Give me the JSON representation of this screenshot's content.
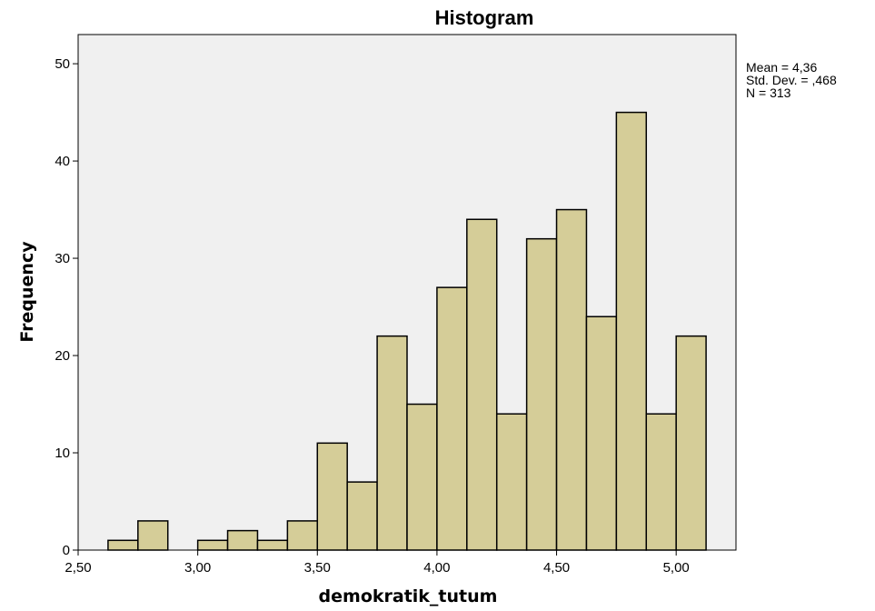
{
  "chart_data": {
    "type": "bar",
    "title": "Histogram",
    "xlabel": "demokratik_tutum",
    "ylabel": "Frequency",
    "xlim": [
      2.5,
      5.25
    ],
    "ylim": [
      0,
      53
    ],
    "xticks": [
      {
        "value": 2.5,
        "label": "2,50"
      },
      {
        "value": 3.0,
        "label": "3,00"
      },
      {
        "value": 3.5,
        "label": "3,50"
      },
      {
        "value": 4.0,
        "label": "4,00"
      },
      {
        "value": 4.5,
        "label": "4,50"
      },
      {
        "value": 5.0,
        "label": "5,00"
      }
    ],
    "yticks": [
      {
        "value": 0,
        "label": "0"
      },
      {
        "value": 10,
        "label": "10"
      },
      {
        "value": 20,
        "label": "20"
      },
      {
        "value": 30,
        "label": "30"
      },
      {
        "value": 40,
        "label": "40"
      },
      {
        "value": 50,
        "label": "50"
      }
    ],
    "bins": [
      {
        "start": 2.625,
        "end": 2.75,
        "count": 1
      },
      {
        "start": 2.75,
        "end": 2.875,
        "count": 3
      },
      {
        "start": 2.875,
        "end": 3.0,
        "count": 0
      },
      {
        "start": 3.0,
        "end": 3.125,
        "count": 1
      },
      {
        "start": 3.125,
        "end": 3.25,
        "count": 2
      },
      {
        "start": 3.25,
        "end": 3.375,
        "count": 1
      },
      {
        "start": 3.375,
        "end": 3.5,
        "count": 3
      },
      {
        "start": 3.5,
        "end": 3.625,
        "count": 11
      },
      {
        "start": 3.625,
        "end": 3.75,
        "count": 7
      },
      {
        "start": 3.75,
        "end": 3.875,
        "count": 22
      },
      {
        "start": 3.875,
        "end": 4.0,
        "count": 15
      },
      {
        "start": 4.0,
        "end": 4.125,
        "count": 27
      },
      {
        "start": 4.125,
        "end": 4.25,
        "count": 34
      },
      {
        "start": 4.25,
        "end": 4.375,
        "count": 14
      },
      {
        "start": 4.375,
        "end": 4.5,
        "count": 32
      },
      {
        "start": 4.5,
        "end": 4.625,
        "count": 35
      },
      {
        "start": 4.625,
        "end": 4.75,
        "count": 24
      },
      {
        "start": 4.75,
        "end": 4.875,
        "count": 45
      },
      {
        "start": 4.875,
        "end": 5.0,
        "count": 14
      },
      {
        "start": 5.0,
        "end": 5.125,
        "count": 22
      }
    ],
    "stats": {
      "mean": "Mean = 4,36",
      "std_dev": "Std. Dev. = ,468",
      "n": "N = 313"
    },
    "colors": {
      "bar_fill": "#d5cd98",
      "bar_stroke": "#000000",
      "plot_background": "#f0f0f0"
    },
    "grid": false,
    "legend": "none"
  }
}
